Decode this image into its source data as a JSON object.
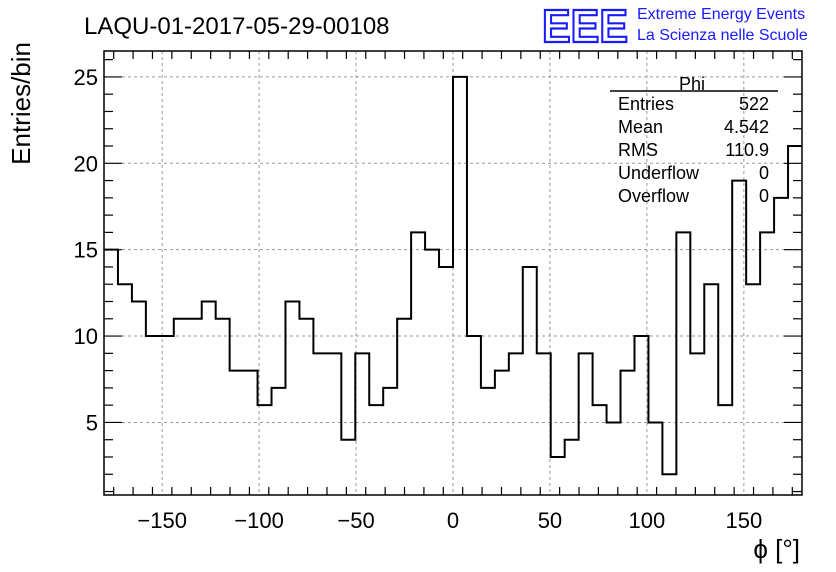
{
  "chart_data": {
    "type": "histogram",
    "title": "LAQU-01-2017-05-29-00108",
    "xlabel": "ϕ [°]",
    "ylabel": "Entries/bin",
    "xlim": [
      -180,
      180
    ],
    "ylim": [
      0.8,
      26.5
    ],
    "x_ticks": [
      -150,
      -100,
      -50,
      0,
      50,
      100,
      150
    ],
    "y_ticks": [
      5,
      10,
      15,
      20,
      25
    ],
    "grid": true,
    "bin_width": 7.2,
    "bin_edges_start": -180,
    "values": [
      15,
      13,
      12,
      10,
      10,
      11,
      11,
      12,
      11,
      8,
      8,
      6,
      7,
      12,
      11,
      9,
      9,
      4,
      9,
      6,
      7,
      11,
      16,
      15,
      14,
      25,
      10,
      7,
      8,
      9,
      14,
      9,
      3,
      4,
      9,
      6,
      5,
      8,
      10,
      5,
      2,
      16,
      9,
      13,
      6,
      19,
      13,
      16,
      18,
      21
    ],
    "stats_box": {
      "name": "Phi",
      "rows": [
        {
          "label": "Entries",
          "value": "522"
        },
        {
          "label": "Mean",
          "value": "4.542"
        },
        {
          "label": "RMS",
          "value": "110.9"
        },
        {
          "label": "Underflow",
          "value": "0"
        },
        {
          "label": "Overflow",
          "value": "0"
        }
      ]
    },
    "colors": {
      "line": "#000000",
      "grid": "#9a9a9a",
      "logo": "#1a1aff"
    }
  },
  "logo": {
    "mark": "EEE",
    "line1": "Extreme Energy Events",
    "line2": "La Scienza nelle Scuole"
  }
}
